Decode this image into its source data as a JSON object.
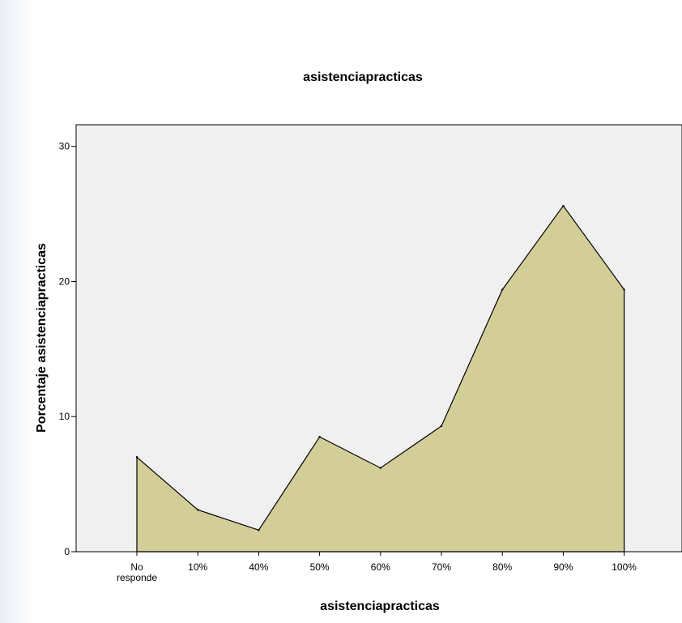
{
  "chart_data": {
    "type": "area",
    "title": "asistenciapracticas",
    "xlabel": "asistenciapracticas",
    "ylabel": "Porcentaje asistenciapracticas",
    "categories": [
      "No responde",
      "10%",
      "40%",
      "50%",
      "60%",
      "70%",
      "80%",
      "90%",
      "100%"
    ],
    "category_lines": [
      [
        "No",
        "responde"
      ],
      [
        "10%"
      ],
      [
        "40%"
      ],
      [
        "50%"
      ],
      [
        "60%"
      ],
      [
        "70%"
      ],
      [
        "80%"
      ],
      [
        "90%"
      ],
      [
        "100%"
      ]
    ],
    "values": [
      7.0,
      3.1,
      1.6,
      8.5,
      6.2,
      9.3,
      19.4,
      25.6,
      19.4
    ],
    "ylim": [
      0,
      31.6
    ],
    "yticks": [
      0,
      10,
      20,
      30
    ],
    "grid": false,
    "colors": {
      "plot_background": "#f0f0f0",
      "area_fill": "#d3cd97",
      "line": "#000000"
    }
  }
}
